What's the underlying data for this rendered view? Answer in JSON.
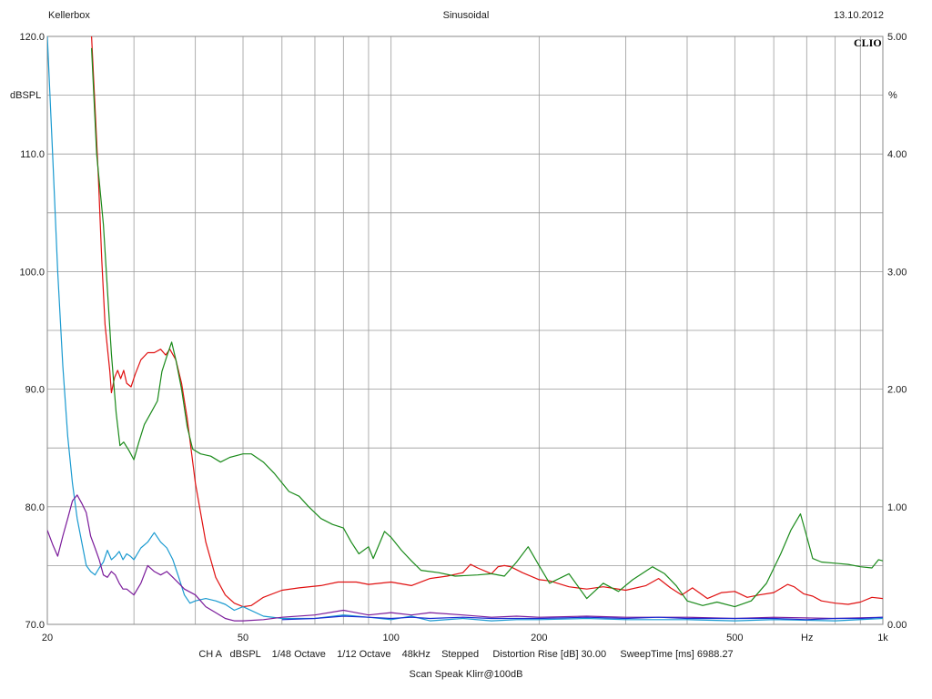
{
  "header": {
    "left": "Kellerbox",
    "center": "Sinusoidal",
    "right": "13.10.2012"
  },
  "brand": "CLIO",
  "footer": {
    "line1": "CH A   dBSPL    1/48 Octave    1/12 Octave    48kHz    Stepped     Distortion Rise [dB] 30.00     SweepTime [ms] 6988.27",
    "line2": "Scan Speak Klirr@100dB"
  },
  "colors": {
    "grid": "#9a9a9a",
    "frame": "#8a8a8a",
    "red": "#e01010",
    "green": "#1a8a1a",
    "cyan": "#1a9ad0",
    "purple": "#7a1a9a",
    "blue": "#1a2ad0"
  },
  "chart_data": {
    "type": "line",
    "x_scale": "log",
    "xlim": [
      20,
      1000
    ],
    "ylim_left": [
      70,
      120
    ],
    "ylim_right": [
      0,
      5
    ],
    "ylabel_left": "dBSPL",
    "ylabel_right": "%",
    "xlabel": "Hz",
    "x_ticks": [
      {
        "v": 20,
        "label": "20"
      },
      {
        "v": 50,
        "label": "50"
      },
      {
        "v": 100,
        "label": "100"
      },
      {
        "v": 200,
        "label": "200"
      },
      {
        "v": 500,
        "label": "500"
      },
      {
        "v": 1000,
        "label": "1k"
      }
    ],
    "y_ticks_left": [
      {
        "v": 70,
        "label": "70.0"
      },
      {
        "v": 80,
        "label": "80.0"
      },
      {
        "v": 90,
        "label": "90.0"
      },
      {
        "v": 100,
        "label": "100.0"
      },
      {
        "v": 110,
        "label": "110.0"
      },
      {
        "v": 120,
        "label": "120.0"
      }
    ],
    "y_ticks_right": [
      {
        "v": 0,
        "label": "0.00"
      },
      {
        "v": 1,
        "label": "1.00"
      },
      {
        "v": 2,
        "label": "2.00"
      },
      {
        "v": 3,
        "label": "3.00"
      },
      {
        "v": 4,
        "label": "4.00"
      },
      {
        "v": 5,
        "label": "5.00"
      }
    ],
    "grid": true,
    "series": [
      {
        "color": "red",
        "axis": "left",
        "points": [
          [
            24.6,
            120
          ],
          [
            25.0,
            114
          ],
          [
            25.4,
            108
          ],
          [
            25.8,
            101
          ],
          [
            26.2,
            95.5
          ],
          [
            26.8,
            91.5
          ],
          [
            27.0,
            89.7
          ],
          [
            27.4,
            91.0
          ],
          [
            27.8,
            91.6
          ],
          [
            28.2,
            90.9
          ],
          [
            28.6,
            91.6
          ],
          [
            29.0,
            90.5
          ],
          [
            29.6,
            90.2
          ],
          [
            30.2,
            91.3
          ],
          [
            31.0,
            92.5
          ],
          [
            32.0,
            93.1
          ],
          [
            33.0,
            93.1
          ],
          [
            34.0,
            93.4
          ],
          [
            34.8,
            92.9
          ],
          [
            35.5,
            93.4
          ],
          [
            36.5,
            92.5
          ],
          [
            37.5,
            90.5
          ],
          [
            38.5,
            87.5
          ],
          [
            40.0,
            82.0
          ],
          [
            42.0,
            77.0
          ],
          [
            44.0,
            74.0
          ],
          [
            46.0,
            72.5
          ],
          [
            48.0,
            71.8
          ],
          [
            50.0,
            71.5
          ],
          [
            52.0,
            71.6
          ],
          [
            55.0,
            72.3
          ],
          [
            60.0,
            72.9
          ],
          [
            65.0,
            73.1
          ],
          [
            72.0,
            73.3
          ],
          [
            78.0,
            73.6
          ],
          [
            85.0,
            73.6
          ],
          [
            90.0,
            73.4
          ],
          [
            100.0,
            73.6
          ],
          [
            110.0,
            73.3
          ],
          [
            120.0,
            73.9
          ],
          [
            130.0,
            74.1
          ],
          [
            140.0,
            74.4
          ],
          [
            145.0,
            75.1
          ],
          [
            150.0,
            74.8
          ],
          [
            160.0,
            74.3
          ],
          [
            165.0,
            74.9
          ],
          [
            170.0,
            75.0
          ],
          [
            175.0,
            74.9
          ],
          [
            185.0,
            74.4
          ],
          [
            200.0,
            73.8
          ],
          [
            210.0,
            73.7
          ],
          [
            230.0,
            73.2
          ],
          [
            250.0,
            73.0
          ],
          [
            270.0,
            73.2
          ],
          [
            300.0,
            72.9
          ],
          [
            330.0,
            73.3
          ],
          [
            350.0,
            73.9
          ],
          [
            370.0,
            73.1
          ],
          [
            390.0,
            72.5
          ],
          [
            410.0,
            73.1
          ],
          [
            440.0,
            72.2
          ],
          [
            470.0,
            72.7
          ],
          [
            500.0,
            72.8
          ],
          [
            530.0,
            72.3
          ],
          [
            560.0,
            72.5
          ],
          [
            600.0,
            72.7
          ],
          [
            640.0,
            73.4
          ],
          [
            660.0,
            73.2
          ],
          [
            690.0,
            72.6
          ],
          [
            720.0,
            72.4
          ],
          [
            750.0,
            72.0
          ],
          [
            800.0,
            71.8
          ],
          [
            850.0,
            71.7
          ],
          [
            900.0,
            71.9
          ],
          [
            950.0,
            72.3
          ],
          [
            1000.0,
            72.2
          ]
        ]
      },
      {
        "color": "green",
        "axis": "left",
        "points": [
          [
            24.6,
            119
          ],
          [
            25.2,
            110
          ],
          [
            26.0,
            104
          ],
          [
            27.0,
            93.0
          ],
          [
            27.6,
            88.0
          ],
          [
            28.1,
            85.2
          ],
          [
            28.6,
            85.5
          ],
          [
            29.3,
            84.8
          ],
          [
            30.0,
            84.0
          ],
          [
            30.7,
            85.5
          ],
          [
            31.5,
            87.0
          ],
          [
            32.5,
            88.0
          ],
          [
            33.5,
            89.0
          ],
          [
            34.2,
            91.5
          ],
          [
            35.0,
            92.8
          ],
          [
            35.8,
            94.0
          ],
          [
            36.5,
            92.5
          ],
          [
            37.5,
            90.0
          ],
          [
            38.5,
            86.8
          ],
          [
            39.5,
            84.9
          ],
          [
            41.0,
            84.5
          ],
          [
            43.0,
            84.3
          ],
          [
            45.0,
            83.8
          ],
          [
            47.0,
            84.2
          ],
          [
            50.0,
            84.5
          ],
          [
            52.0,
            84.5
          ],
          [
            55.0,
            83.8
          ],
          [
            58.0,
            82.8
          ],
          [
            62.0,
            81.3
          ],
          [
            65.0,
            80.9
          ],
          [
            68.0,
            80.0
          ],
          [
            72.0,
            79.0
          ],
          [
            76.0,
            78.5
          ],
          [
            80.0,
            78.2
          ],
          [
            83.0,
            77.0
          ],
          [
            86.0,
            76.0
          ],
          [
            90.0,
            76.6
          ],
          [
            92.0,
            75.6
          ],
          [
            95.0,
            77.0
          ],
          [
            97.0,
            77.9
          ],
          [
            100.0,
            77.4
          ],
          [
            105.0,
            76.3
          ],
          [
            110.0,
            75.4
          ],
          [
            115.0,
            74.6
          ],
          [
            125.0,
            74.4
          ],
          [
            135.0,
            74.1
          ],
          [
            150.0,
            74.2
          ],
          [
            160.0,
            74.3
          ],
          [
            170.0,
            74.1
          ],
          [
            180.0,
            75.3
          ],
          [
            190.0,
            76.6
          ],
          [
            200.0,
            75.0
          ],
          [
            210.0,
            73.5
          ],
          [
            230.0,
            74.3
          ],
          [
            250.0,
            72.2
          ],
          [
            270.0,
            73.5
          ],
          [
            290.0,
            72.8
          ],
          [
            310.0,
            73.8
          ],
          [
            340.0,
            74.9
          ],
          [
            360.0,
            74.3
          ],
          [
            380.0,
            73.3
          ],
          [
            400.0,
            72.0
          ],
          [
            430.0,
            71.6
          ],
          [
            460.0,
            71.9
          ],
          [
            500.0,
            71.5
          ],
          [
            540.0,
            72.0
          ],
          [
            580.0,
            73.5
          ],
          [
            620.0,
            76.0
          ],
          [
            650.0,
            78.0
          ],
          [
            680.0,
            79.4
          ],
          [
            700.0,
            77.5
          ],
          [
            720.0,
            75.6
          ],
          [
            750.0,
            75.3
          ],
          [
            800.0,
            75.2
          ],
          [
            850.0,
            75.1
          ],
          [
            900.0,
            74.9
          ],
          [
            950.0,
            74.8
          ],
          [
            980.0,
            75.5
          ],
          [
            1000.0,
            75.4
          ]
        ]
      },
      {
        "color": "cyan",
        "axis": "left",
        "points": [
          [
            20.0,
            120.0
          ],
          [
            20.5,
            110
          ],
          [
            21.0,
            100
          ],
          [
            21.5,
            92.0
          ],
          [
            22.0,
            86.0
          ],
          [
            22.5,
            82.0
          ],
          [
            23.0,
            79.0
          ],
          [
            23.5,
            77.0
          ],
          [
            24.0,
            75.0
          ],
          [
            24.5,
            74.5
          ],
          [
            25.0,
            74.2
          ],
          [
            25.5,
            74.8
          ],
          [
            26.0,
            75.3
          ],
          [
            26.5,
            76.3
          ],
          [
            27.0,
            75.5
          ],
          [
            27.5,
            75.8
          ],
          [
            28.0,
            76.2
          ],
          [
            28.5,
            75.5
          ],
          [
            29.0,
            76.0
          ],
          [
            29.5,
            75.8
          ],
          [
            30.0,
            75.5
          ],
          [
            31.0,
            76.5
          ],
          [
            32.0,
            77.0
          ],
          [
            33.0,
            77.8
          ],
          [
            34.0,
            77.0
          ],
          [
            35.0,
            76.5
          ],
          [
            36.0,
            75.5
          ],
          [
            37.0,
            74.0
          ],
          [
            38.0,
            72.5
          ],
          [
            39.0,
            71.8
          ],
          [
            40.0,
            72.0
          ],
          [
            42.0,
            72.2
          ],
          [
            44.0,
            72.0
          ],
          [
            46.0,
            71.7
          ],
          [
            48.0,
            71.2
          ],
          [
            50.0,
            71.5
          ],
          [
            55.0,
            70.7
          ],
          [
            60.0,
            70.5
          ],
          [
            70.0,
            70.5
          ],
          [
            80.0,
            70.8
          ],
          [
            90.0,
            70.6
          ],
          [
            100.0,
            70.4
          ],
          [
            110.0,
            70.7
          ],
          [
            120.0,
            70.3
          ],
          [
            140.0,
            70.5
          ],
          [
            160.0,
            70.3
          ],
          [
            180.0,
            70.4
          ],
          [
            200.0,
            70.4
          ],
          [
            250.0,
            70.5
          ],
          [
            300.0,
            70.4
          ],
          [
            400.0,
            70.4
          ],
          [
            500.0,
            70.3
          ],
          [
            600.0,
            70.4
          ],
          [
            800.0,
            70.3
          ],
          [
            1000.0,
            70.5
          ]
        ]
      },
      {
        "color": "purple",
        "axis": "left",
        "points": [
          [
            20.0,
            78.0
          ],
          [
            20.5,
            76.8
          ],
          [
            21.0,
            75.8
          ],
          [
            21.5,
            77.5
          ],
          [
            22.0,
            79.0
          ],
          [
            22.5,
            80.5
          ],
          [
            23.0,
            81.0
          ],
          [
            23.5,
            80.3
          ],
          [
            24.0,
            79.5
          ],
          [
            24.5,
            77.5
          ],
          [
            25.0,
            76.5
          ],
          [
            25.5,
            75.5
          ],
          [
            26.0,
            74.2
          ],
          [
            26.5,
            74.0
          ],
          [
            27.0,
            74.5
          ],
          [
            27.5,
            74.2
          ],
          [
            28.0,
            73.5
          ],
          [
            28.5,
            73.0
          ],
          [
            29.0,
            73.0
          ],
          [
            30.0,
            72.5
          ],
          [
            31.0,
            73.5
          ],
          [
            32.0,
            75.0
          ],
          [
            33.0,
            74.5
          ],
          [
            34.0,
            74.2
          ],
          [
            35.0,
            74.5
          ],
          [
            36.0,
            74.0
          ],
          [
            37.0,
            73.5
          ],
          [
            38.0,
            73.0
          ],
          [
            40.0,
            72.5
          ],
          [
            42.0,
            71.5
          ],
          [
            44.0,
            71.0
          ],
          [
            46.0,
            70.5
          ],
          [
            48.0,
            70.3
          ],
          [
            50.0,
            70.3
          ],
          [
            55.0,
            70.4
          ],
          [
            60.0,
            70.6
          ],
          [
            70.0,
            70.8
          ],
          [
            80.0,
            71.2
          ],
          [
            90.0,
            70.8
          ],
          [
            100.0,
            71.0
          ],
          [
            110.0,
            70.8
          ],
          [
            120.0,
            71.0
          ],
          [
            140.0,
            70.8
          ],
          [
            160.0,
            70.6
          ],
          [
            180.0,
            70.7
          ],
          [
            200.0,
            70.6
          ],
          [
            250.0,
            70.7
          ],
          [
            300.0,
            70.6
          ],
          [
            400.0,
            70.6
          ],
          [
            500.0,
            70.5
          ],
          [
            600.0,
            70.6
          ],
          [
            800.0,
            70.5
          ],
          [
            1000.0,
            70.6
          ]
        ]
      },
      {
        "color": "blue",
        "axis": "left",
        "points": [
          [
            60.0,
            70.4
          ],
          [
            70.0,
            70.5
          ],
          [
            80.0,
            70.7
          ],
          [
            90.0,
            70.6
          ],
          [
            100.0,
            70.5
          ],
          [
            110.0,
            70.6
          ],
          [
            120.0,
            70.5
          ],
          [
            140.0,
            70.6
          ],
          [
            160.0,
            70.5
          ],
          [
            180.0,
            70.5
          ],
          [
            200.0,
            70.5
          ],
          [
            250.0,
            70.6
          ],
          [
            300.0,
            70.5
          ],
          [
            350.0,
            70.6
          ],
          [
            400.0,
            70.5
          ],
          [
            500.0,
            70.5
          ],
          [
            600.0,
            70.5
          ],
          [
            700.0,
            70.4
          ],
          [
            800.0,
            70.5
          ],
          [
            900.0,
            70.5
          ],
          [
            1000.0,
            70.6
          ]
        ]
      }
    ]
  }
}
